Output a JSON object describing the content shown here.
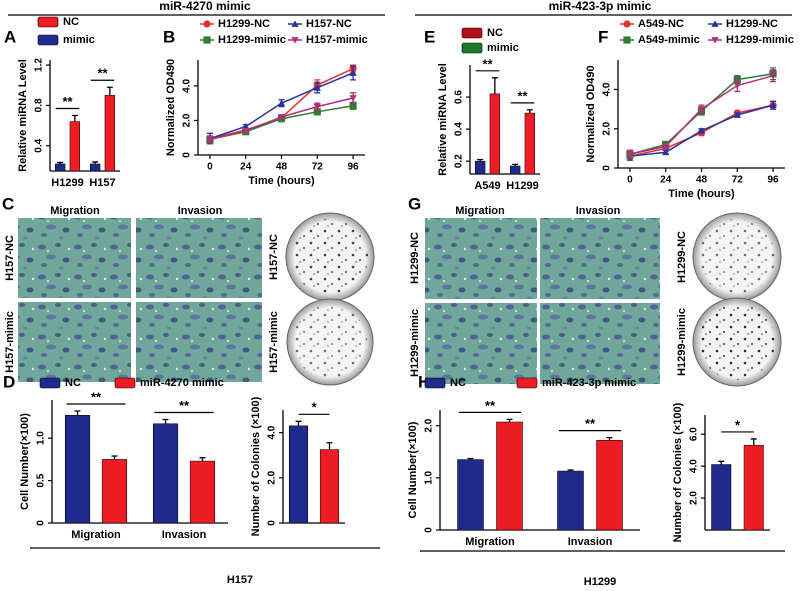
{
  "headers": [
    "miR-4270 mimic",
    "miR-423-3p mimic"
  ],
  "panel_labels": [
    "A",
    "B",
    "C",
    "D",
    "E",
    "F",
    "G",
    "H"
  ],
  "images": [
    {
      "columns": [
        "Migration",
        "Invasion"
      ],
      "rows": [
        "H157-NC",
        "H157-mimic"
      ],
      "colony_rows": [
        "H157-NC",
        "H157-mimic"
      ]
    },
    {
      "columns": [
        "Migration",
        "Invasion"
      ],
      "rows": [
        "H1299-NC",
        "H1299-mimic"
      ],
      "colony_rows": [
        "H1299-NC",
        "H1299-mimic"
      ]
    }
  ],
  "cell_lines": [
    "H157",
    "H1299"
  ],
  "chart_data": [
    {
      "type": "bar",
      "ylabel": "Relative miRNA Level",
      "categories": [
        "H1299",
        "H157"
      ],
      "series": [
        {
          "name": "NC",
          "color": "#ee1c25",
          "values": [
            0.64,
            0.9
          ],
          "errors": [
            0.06,
            0.08
          ]
        },
        {
          "name": "mimic",
          "color": "#1f2a8c",
          "values": [
            0.22,
            0.22
          ],
          "errors": [
            0.015,
            0.02
          ]
        }
      ],
      "ylim": [
        0.15,
        1.25
      ],
      "yticks": [
        0.4,
        0.8,
        1.2
      ],
      "significance": [
        "**",
        "**"
      ]
    },
    {
      "type": "line",
      "ylabel": "Normalized OD490",
      "xlabel": "Time (hours)",
      "x": [
        0,
        24,
        48,
        72,
        96
      ],
      "xlim": [
        -8,
        104
      ],
      "xticks": [
        0,
        24,
        48,
        72,
        96
      ],
      "series": [
        {
          "name": "H1299-NC",
          "color": "#e8312f",
          "marker": "circle",
          "values": [
            0.95,
            1.45,
            2.15,
            4.05,
            5.0
          ],
          "errors": [
            0.3,
            0.1,
            0.15,
            0.3,
            0.2
          ]
        },
        {
          "name": "H157-NC",
          "color": "#2533a0",
          "marker": "triangle",
          "values": [
            0.95,
            1.65,
            3.0,
            3.9,
            4.75
          ],
          "errors": [
            0.3,
            0.1,
            0.2,
            0.3,
            0.4
          ]
        },
        {
          "name": "H1299-mimic",
          "color": "#2e7d32",
          "marker": "square",
          "values": [
            0.9,
            1.35,
            2.1,
            2.5,
            2.85
          ],
          "errors": [
            0.2,
            0.1,
            0.1,
            0.1,
            0.2
          ]
        },
        {
          "name": "H157-mimic",
          "color": "#b0307a",
          "marker": "triangle-down",
          "values": [
            0.9,
            1.4,
            2.2,
            2.8,
            3.3
          ],
          "errors": [
            0.2,
            0.1,
            0.1,
            0.2,
            0.3
          ]
        }
      ],
      "ylim": [
        0,
        5.5
      ],
      "yticks": [
        0,
        {
          "value": 2,
          "label": "2.0"
        },
        {
          "value": 4,
          "label": "4.0"
        }
      ]
    },
    {
      "type": "bar",
      "ylabel": "Cell Number(×100)",
      "categories": [
        "Migration",
        "Invasion"
      ],
      "series": [
        {
          "name": "NC",
          "color": "#1f2a8c",
          "values": [
            1.27,
            1.17
          ],
          "errors": [
            0.05,
            0.05
          ]
        },
        {
          "name": "miR-4270 mimic",
          "color": "#ee1c25",
          "values": [
            0.75,
            0.73
          ],
          "errors": [
            0.04,
            0.04
          ]
        }
      ],
      "ylim": [
        0,
        1.45
      ],
      "yticks": [
        0,
        0.5,
        {
          "value": 1,
          "label": "1.0"
        }
      ],
      "significance": [
        "**",
        "**"
      ]
    },
    {
      "type": "bar",
      "ylabel": "Number of Colonies (×100)",
      "values": [
        4.3,
        3.25
      ],
      "errors": [
        0.2,
        0.3
      ],
      "colors": [
        "#1f2a8c",
        "#ee1c25"
      ],
      "ylim": [
        0,
        5
      ],
      "yticks": [
        0,
        {
          "value": 2,
          "label": "2.0"
        },
        {
          "value": 4,
          "label": "4.0"
        }
      ],
      "significance": "*"
    },
    {
      "type": "bar",
      "ylabel": "Relative miRNA Level",
      "categories": [
        "A549",
        "H1299"
      ],
      "series": [
        {
          "name": "NC",
          "color": "#b3121a",
          "bar_color": "#ee1c25",
          "values": [
            0.62,
            0.5
          ],
          "errors": [
            0.1,
            0.02
          ]
        },
        {
          "name": "mimic",
          "color": "#1a7a2a",
          "bar_color": "#1f2a8c",
          "values": [
            0.2,
            0.17
          ],
          "errors": [
            0.01,
            0.01
          ]
        }
      ],
      "ylim": [
        0.12,
        0.8
      ],
      "yticks": [
        0.2,
        0.4,
        0.6
      ],
      "significance": [
        "**",
        "**"
      ]
    },
    {
      "type": "line",
      "ylabel": "Normalized OD490",
      "xlabel": "Time (hours)",
      "x": [
        0,
        24,
        48,
        72,
        96
      ],
      "xlim": [
        -8,
        104
      ],
      "xticks": [
        0,
        24,
        48,
        72,
        96
      ],
      "series": [
        {
          "name": "A549-NC",
          "color": "#e8312f",
          "marker": "circle",
          "values": [
            0.6,
            1.0,
            1.8,
            2.8,
            3.2
          ],
          "errors": [
            0.2,
            0.1,
            0.15,
            0.1,
            0.2
          ]
        },
        {
          "name": "H1299-NC",
          "color": "#2533a0",
          "marker": "triangle",
          "values": [
            0.6,
            0.8,
            1.9,
            2.7,
            3.2
          ],
          "errors": [
            0.2,
            0.1,
            0.1,
            0.1,
            0.2
          ]
        },
        {
          "name": "A549-mimic",
          "color": "#2e7d32",
          "marker": "square",
          "values": [
            0.7,
            1.2,
            2.9,
            4.5,
            4.8
          ],
          "errors": [
            0.2,
            0.1,
            0.2,
            0.2,
            0.3
          ]
        },
        {
          "name": "H1299-mimic",
          "color": "#b0307a",
          "marker": "triangle-down",
          "values": [
            0.7,
            1.1,
            3.0,
            4.2,
            4.7
          ],
          "errors": [
            0.2,
            0.1,
            0.2,
            0.3,
            0.3
          ]
        }
      ],
      "ylim": [
        0,
        5.5
      ],
      "yticks": [
        0,
        {
          "value": 2,
          "label": "2.0"
        },
        {
          "value": 4,
          "label": "4.0"
        }
      ]
    },
    {
      "type": "bar",
      "ylabel": "Cell Number(×100)",
      "categories": [
        "Migration",
        "Invasion"
      ],
      "series": [
        {
          "name": "NC",
          "color": "#1f2a8c",
          "values": [
            1.35,
            1.13
          ],
          "errors": [
            0.02,
            0.02
          ]
        },
        {
          "name": "miR-423-3p mimic",
          "color": "#ee1c25",
          "values": [
            2.07,
            1.72
          ],
          "errors": [
            0.05,
            0.05
          ]
        }
      ],
      "ylim": [
        0,
        2.3
      ],
      "yticks": [
        0,
        {
          "value": 1,
          "label": "1.0"
        },
        {
          "value": 2,
          "label": "2.0"
        }
      ],
      "significance": [
        "**",
        "**"
      ]
    },
    {
      "type": "bar",
      "ylabel": "Number of Colonies (×100)",
      "values": [
        4.1,
        5.3
      ],
      "errors": [
        0.2,
        0.4
      ],
      "colors": [
        "#1f2a8c",
        "#ee1c25"
      ],
      "ylim": [
        0,
        7.2
      ],
      "yticks": [
        {
          "value": 2,
          "label": "2.0"
        },
        {
          "value": 4,
          "label": "4.0"
        },
        {
          "value": 6,
          "label": "6.0"
        }
      ],
      "significance": "*"
    }
  ]
}
